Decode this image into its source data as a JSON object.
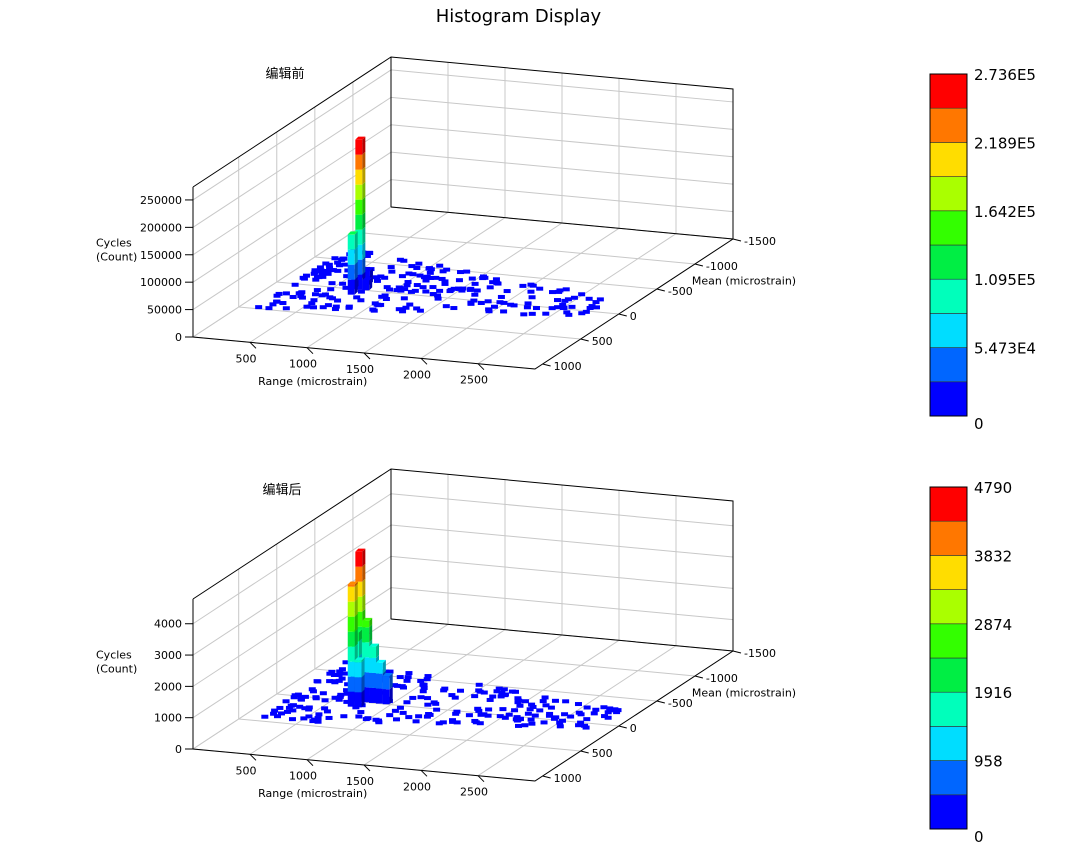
{
  "title": "Histogram Display",
  "colormap": [
    "#0000ff",
    "#0066ff",
    "#00ddff",
    "#00ffbb",
    "#00ee44",
    "#33ff00",
    "#aaff00",
    "#ffdd00",
    "#ff7700",
    "#ff0000"
  ],
  "chart_data": [
    {
      "type": "bar3d",
      "title": "编辑前",
      "xlabel": "Range (microstrain)",
      "ylabel": "Mean (microstrain)",
      "zlabel_lines": [
        "Cycles",
        "(Count)"
      ],
      "x_ticks": [
        "500",
        "1000",
        "1500",
        "2000",
        "2500"
      ],
      "y_ticks": [
        "-1500",
        "-1000",
        "-500",
        "0",
        "500",
        "1000"
      ],
      "z_ticks": [
        "0",
        "50000",
        "100000",
        "150000",
        "200000",
        "250000"
      ],
      "zlim": [
        0,
        273600
      ],
      "colorbar_labels": [
        "0",
        "5.473E4",
        "1.095E5",
        "1.642E5",
        "2.189E5",
        "2.736E5"
      ],
      "peak": {
        "range": 720,
        "mean": 0,
        "value": 273600
      },
      "secondary": [
        {
          "range": 720,
          "mean": 100,
          "value": 110000
        },
        {
          "range": 720,
          "mean": -100,
          "value": 25000
        },
        {
          "range": 780,
          "mean": 0,
          "value": 18000
        },
        {
          "range": 660,
          "mean": 0,
          "value": 12000
        }
      ]
    },
    {
      "type": "bar3d",
      "title": "编辑后",
      "xlabel": "Range (microstrain)",
      "ylabel": "Mean (microstrain)",
      "zlabel_lines": [
        "Cycles",
        "(Count)"
      ],
      "x_ticks": [
        "500",
        "1000",
        "1500",
        "2000",
        "2500"
      ],
      "y_ticks": [
        "-1500",
        "-1000",
        "-500",
        "0",
        "500",
        "1000"
      ],
      "z_ticks": [
        "0",
        "1000",
        "2000",
        "3000",
        "4000"
      ],
      "zlim": [
        0,
        4790
      ],
      "colorbar_labels": [
        "0",
        "958",
        "1916",
        "2874",
        "3832",
        "4790"
      ],
      "peak": {
        "range": 720,
        "mean": 0,
        "value": 4790
      },
      "secondary": [
        {
          "range": 720,
          "mean": 100,
          "value": 3900
        },
        {
          "range": 690,
          "mean": 0,
          "value": 2200
        },
        {
          "range": 780,
          "mean": 0,
          "value": 2600
        },
        {
          "range": 840,
          "mean": 0,
          "value": 1800
        },
        {
          "range": 900,
          "mean": 0,
          "value": 1300
        },
        {
          "range": 960,
          "mean": 0,
          "value": 900
        },
        {
          "range": 780,
          "mean": 100,
          "value": 1500
        },
        {
          "range": 660,
          "mean": -100,
          "value": 800
        }
      ]
    }
  ]
}
